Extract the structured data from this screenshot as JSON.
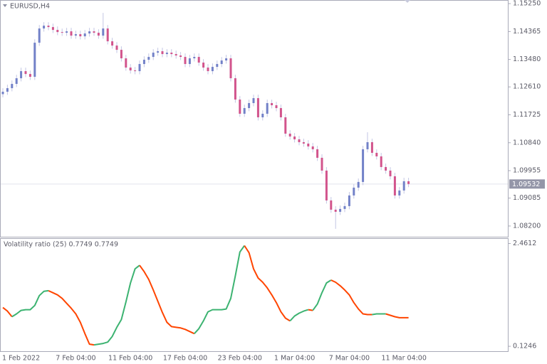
{
  "chart_data": [
    {
      "type": "candlestick",
      "title": "EURUSD,H4",
      "categories": [
        null,
        null,
        null,
        null,
        "1 Feb 2022",
        null,
        null,
        null,
        null,
        null,
        null,
        null,
        null,
        null,
        null,
        null,
        "7 Feb 04:00",
        null,
        null,
        null,
        null,
        null,
        null,
        null,
        null,
        null,
        null,
        null,
        "11 Feb 04:00",
        null,
        null,
        null,
        null,
        null,
        null,
        null,
        null,
        null,
        null,
        null,
        "17 Feb 04:00",
        null,
        null,
        null,
        null,
        null,
        null,
        null,
        null,
        null,
        null,
        null,
        "23 Feb 04:00",
        null,
        null,
        null,
        null,
        null,
        null,
        null,
        null,
        null,
        null,
        null,
        "1 Mar 04:00",
        null,
        null,
        null,
        null,
        null,
        null,
        null,
        null,
        null,
        null,
        null,
        "7 Mar 04:00",
        null,
        null,
        null,
        null,
        null,
        null,
        null,
        null,
        null,
        null,
        null,
        "11 Mar 04:00",
        null
      ],
      "open": [
        1.1238,
        1.12457,
        1.1257,
        1.12705,
        1.12885,
        1.1311,
        1.1302,
        1.1293,
        1.14011,
        1.14462,
        1.14552,
        1.14507,
        1.14417,
        1.14349,
        1.14327,
        1.14372,
        1.14236,
        1.14282,
        1.14214,
        1.14304,
        1.14372,
        1.14327,
        1.14236,
        1.14462,
        1.14056,
        1.13921,
        1.13786,
        1.13516,
        1.13223,
        1.13133,
        1.1311,
        1.13336,
        1.13471,
        1.13561,
        1.13696,
        1.13741,
        1.13651,
        1.13696,
        1.13651,
        1.13606,
        1.13561,
        1.13336,
        1.13516,
        1.13561,
        1.13381,
        1.13223,
        1.1311,
        1.13245,
        1.13336,
        1.13448,
        1.13516,
        1.12885,
        1.12209,
        1.11759,
        1.11939,
        1.12097,
        1.12254,
        1.11646,
        1.11759,
        1.12097,
        1.12029,
        1.11939,
        1.11646,
        1.11128,
        1.11038,
        1.10948,
        1.10858,
        1.10813,
        1.10723,
        1.10633,
        1.10363,
        1.09957,
        1.09011,
        1.08718,
        1.08651,
        1.08741,
        1.08831,
        1.09169,
        1.09417,
        1.09597,
        1.10633,
        1.10858,
        1.1052,
        1.10408,
        1.1007,
        1.09957,
        1.09777,
        1.09169,
        1.09326,
        1.09619
      ],
      "high": [
        1.12567,
        1.1268,
        1.12815,
        1.12995,
        1.1322,
        1.1322,
        1.1313,
        1.14121,
        1.14572,
        1.14662,
        1.14662,
        1.14617,
        1.14527,
        1.14459,
        1.14482,
        1.14482,
        1.14392,
        1.14392,
        1.14414,
        1.14482,
        1.14482,
        1.14437,
        1.14957,
        1.14572,
        1.14166,
        1.14031,
        1.13896,
        1.13626,
        1.13333,
        1.13243,
        1.13446,
        1.13581,
        1.13671,
        1.13806,
        1.13851,
        1.13851,
        1.13806,
        1.13806,
        1.13761,
        1.13716,
        1.13671,
        1.13626,
        1.13671,
        1.13671,
        1.13491,
        1.13333,
        1.13355,
        1.13446,
        1.13558,
        1.13626,
        1.13626,
        1.12995,
        1.12319,
        1.12049,
        1.12207,
        1.12364,
        1.12364,
        1.11869,
        1.12207,
        1.12207,
        1.12139,
        1.12049,
        1.11756,
        1.11238,
        1.11148,
        1.11058,
        1.10968,
        1.10923,
        1.10833,
        1.10743,
        1.10473,
        1.10067,
        1.09121,
        1.08828,
        1.08851,
        1.08941,
        1.09279,
        1.09527,
        1.09707,
        1.10743,
        1.11173,
        1.10968,
        1.1063,
        1.10518,
        1.1018,
        1.10067,
        1.09887,
        1.09436,
        1.09729,
        1.09729
      ],
      "low": [
        1.1228,
        1.12357,
        1.1247,
        1.12605,
        1.12785,
        1.1292,
        1.1283,
        1.1283,
        1.13911,
        1.14362,
        1.14407,
        1.14317,
        1.14249,
        1.14227,
        1.14227,
        1.14136,
        1.14136,
        1.14114,
        1.14114,
        1.14204,
        1.14227,
        1.14136,
        1.14136,
        1.13956,
        1.13821,
        1.13686,
        1.13416,
        1.13123,
        1.13033,
        1.1301,
        1.1301,
        1.13236,
        1.13371,
        1.13461,
        1.13596,
        1.13551,
        1.13551,
        1.13551,
        1.13506,
        1.13461,
        1.13236,
        1.13236,
        1.13416,
        1.13281,
        1.13123,
        1.1301,
        1.1301,
        1.13145,
        1.13236,
        1.13348,
        1.12785,
        1.12109,
        1.11659,
        1.11659,
        1.11839,
        1.11997,
        1.11546,
        1.11546,
        1.11659,
        1.11929,
        1.11839,
        1.11546,
        1.11028,
        1.10938,
        1.10848,
        1.10758,
        1.10713,
        1.10623,
        1.10533,
        1.10263,
        1.09857,
        1.08911,
        1.08618,
        1.0811,
        1.08551,
        1.08641,
        1.08731,
        1.09069,
        1.09317,
        1.09497,
        1.10533,
        1.1042,
        1.10308,
        1.0997,
        1.09857,
        1.09677,
        1.09069,
        1.09069,
        1.09226,
        1.09432
      ],
      "close": [
        1.12457,
        1.1257,
        1.12705,
        1.12885,
        1.1311,
        1.1302,
        1.1293,
        1.14011,
        1.14462,
        1.14552,
        1.14507,
        1.14417,
        1.14349,
        1.14327,
        1.14372,
        1.14236,
        1.14282,
        1.14214,
        1.14304,
        1.14372,
        1.14327,
        1.14236,
        1.14462,
        1.14056,
        1.13921,
        1.13786,
        1.13516,
        1.13223,
        1.13133,
        1.1311,
        1.13336,
        1.13471,
        1.13561,
        1.13696,
        1.13741,
        1.13651,
        1.13696,
        1.13651,
        1.13606,
        1.13561,
        1.13336,
        1.13516,
        1.13561,
        1.13381,
        1.13223,
        1.1311,
        1.13245,
        1.13336,
        1.13448,
        1.13516,
        1.12885,
        1.12209,
        1.11759,
        1.11939,
        1.12097,
        1.12254,
        1.11646,
        1.11759,
        1.12097,
        1.12029,
        1.11939,
        1.11646,
        1.11128,
        1.11038,
        1.10948,
        1.10858,
        1.10813,
        1.10723,
        1.10633,
        1.10363,
        1.09957,
        1.09011,
        1.08718,
        1.08651,
        1.08741,
        1.08831,
        1.09169,
        1.09417,
        1.09597,
        1.10633,
        1.10858,
        1.1052,
        1.10408,
        1.1007,
        1.09957,
        1.09777,
        1.09169,
        1.09326,
        1.09619,
        1.09532
      ],
      "up_color": "#7281c8",
      "down_color": "#d2548c",
      "wick_color": "#c3c6e4",
      "ylim": [
        1.0786,
        1.1532
      ],
      "yticks": [
        {
          "value": 1.1525,
          "label": "1.15250"
        },
        1.14365,
        {
          "value": 1.1348,
          "label": "1.13480"
        },
        {
          "value": 1.1261,
          "label": "1.12610"
        },
        1.11725,
        {
          "value": 1.1084,
          "label": "1.10840"
        },
        1.09955,
        1.09085,
        {
          "value": 1.082,
          "label": "1.08200"
        }
      ]
    },
    {
      "type": "line",
      "title": "Volatility ratio (25) 0.7749 0.7749",
      "values": [
        1.0048,
        0.9248,
        0.7968,
        0.8608,
        0.9408,
        0.9568,
        0.9568,
        1.0528,
        1.2769,
        1.3729,
        1.3889,
        1.3409,
        1.2929,
        1.2129,
        1.1008,
        0.9888,
        0.8608,
        0.6687,
        0.4127,
        0.1726,
        0.1566,
        0.1726,
        0.1886,
        0.2206,
        0.3487,
        0.5567,
        0.7328,
        1.1329,
        1.565,
        1.885,
        1.9651,
        1.821,
        1.645,
        1.4049,
        1.1489,
        0.8928,
        0.6687,
        0.5727,
        0.5567,
        0.5407,
        0.5087,
        0.4607,
        0.4127,
        0.5247,
        0.7007,
        0.9088,
        0.9568,
        0.9568,
        0.9568,
        0.9728,
        1.2129,
        1.725,
        2.2691,
        2.4132,
        2.2531,
        1.885,
        1.677,
        1.581,
        1.4529,
        1.2929,
        1.1168,
        0.9088,
        0.7648,
        0.7007,
        0.8128,
        0.8768,
        0.9248,
        0.9568,
        0.9408,
        1.0848,
        1.3409,
        1.565,
        1.629,
        1.581,
        1.5009,
        1.4049,
        1.2929,
        1.1168,
        0.9728,
        0.8608,
        0.8448,
        0.8448,
        0.8608,
        0.8608,
        0.8608,
        0.8288,
        0.7968,
        0.7749,
        0.7749,
        0.7749
      ],
      "up_color": "#3cb371",
      "down_color": "#ff4500",
      "ylim": [
        0.013,
        2.55
      ],
      "yticks": [
        2.4612,
        0.1246
      ]
    }
  ]
}
